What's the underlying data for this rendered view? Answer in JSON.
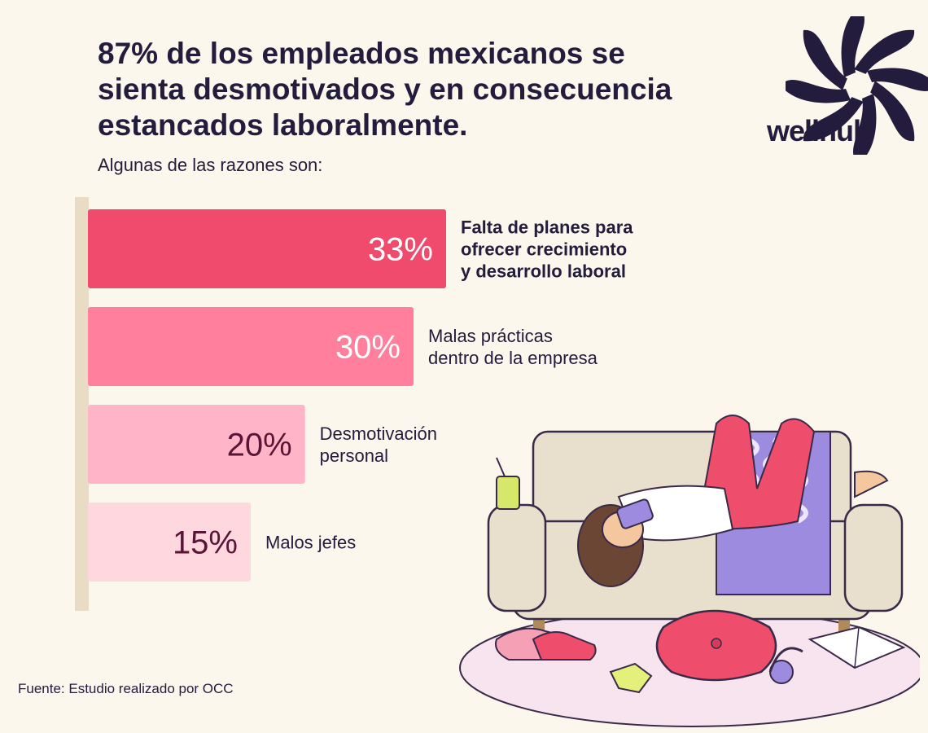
{
  "title_lines": [
    "87% de los empleados mexicanos se",
    "sienta desmotivados y en consecuencia",
    "estancados laboralmente."
  ],
  "subtitle": "Algunas de las razones son:",
  "brand": {
    "name": "wellhub",
    "color": "#231c3d"
  },
  "source": "Fuente: Estudio realizado por OCC",
  "chart_data": {
    "type": "bar",
    "orientation": "horizontal",
    "categories": [
      [
        "Falta de planes para",
        "ofrecer crecimiento",
        "y desarrollo laboral"
      ],
      [
        "Malas prácticas",
        "dentro de la empresa"
      ],
      [
        "Desmotivación",
        "personal"
      ],
      [
        "Malos jefes"
      ]
    ],
    "values": [
      33,
      30,
      20,
      15
    ],
    "value_labels": [
      "33%",
      "30%",
      "20%",
      "15%"
    ],
    "bar_colors": [
      "#f04a6c",
      "#ff7f9d",
      "#ffb5c7",
      "#ffd8df"
    ],
    "value_label_colors": [
      "#ffffff",
      "#ffffff",
      "#5a1536",
      "#5a1536"
    ],
    "category_bold": [
      true,
      false,
      false,
      false
    ],
    "xlim": [
      0,
      33
    ]
  }
}
